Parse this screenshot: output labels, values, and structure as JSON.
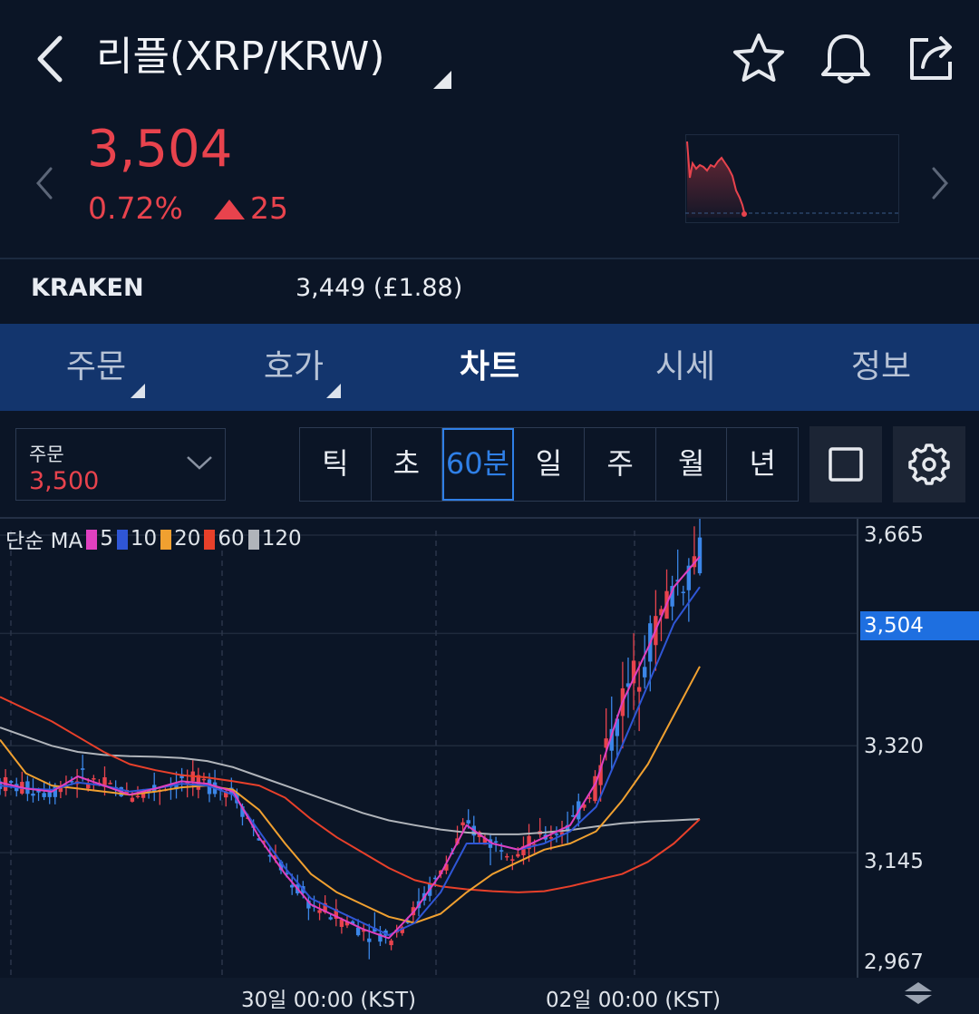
{
  "header": {
    "title": "리플(XRP/KRW)",
    "icons": [
      "back-arrow-icon",
      "star-icon",
      "bell-icon",
      "share-icon"
    ]
  },
  "price": {
    "current": "3,504",
    "change_pct": "0.72%",
    "change_abs": "25",
    "color_up": "#e8434d"
  },
  "exchange": {
    "name": "KRAKEN",
    "value": "3,449 (£1.88)"
  },
  "tabs": [
    {
      "label": "주문",
      "has_caret": true
    },
    {
      "label": "호가",
      "has_caret": true
    },
    {
      "label": "차트",
      "active": true
    },
    {
      "label": "시세"
    },
    {
      "label": "정보"
    }
  ],
  "order_select": {
    "label": "주문",
    "value": "3,500"
  },
  "periods": [
    "틱",
    "초",
    "60분",
    "일",
    "주",
    "월",
    "년"
  ],
  "selected_period": "60분",
  "chart": {
    "legend_prefix": "단순 MA",
    "ma_lines": [
      {
        "name": "5",
        "color": "#e040c0"
      },
      {
        "name": "10",
        "color": "#2f56d6"
      },
      {
        "name": "20",
        "color": "#f0a030"
      },
      {
        "name": "60",
        "color": "#e8402a"
      },
      {
        "name": "120",
        "color": "#b0b4ba"
      }
    ],
    "y_ticks": [
      "3,665",
      "3,320",
      "3,145",
      "2,967"
    ],
    "price_tag": "3,504",
    "x_ticks": [
      "30일 00:00 (KST)",
      "02일 00:00 (KST)"
    ]
  },
  "chart_data": {
    "type": "line",
    "title": "",
    "ylim": [
      2967,
      3665
    ],
    "current_price": 3504,
    "series": [
      {
        "name": "5",
        "values": [
          3260,
          3250,
          3245,
          3270,
          3255,
          3240,
          3250,
          3262,
          3258,
          3245,
          3170,
          3110,
          3060,
          3040,
          3020,
          3005,
          3050,
          3110,
          3190,
          3160,
          3150,
          3170,
          3190,
          3260,
          3390,
          3480,
          3580,
          3630
        ]
      },
      {
        "name": "10",
        "values": [
          3255,
          3250,
          3248,
          3260,
          3255,
          3245,
          3250,
          3258,
          3255,
          3240,
          3180,
          3120,
          3070,
          3050,
          3030,
          3010,
          3030,
          3080,
          3160,
          3160,
          3150,
          3160,
          3180,
          3220,
          3320,
          3420,
          3520,
          3580
        ]
      },
      {
        "name": "20",
        "values": [
          3330,
          3275,
          3255,
          3250,
          3245,
          3240,
          3245,
          3252,
          3255,
          3248,
          3215,
          3160,
          3110,
          3080,
          3060,
          3040,
          3030,
          3045,
          3080,
          3110,
          3130,
          3150,
          3160,
          3180,
          3230,
          3290,
          3370,
          3450
        ]
      },
      {
        "name": "60",
        "values": [
          3400,
          3380,
          3360,
          3335,
          3310,
          3290,
          3280,
          3272,
          3268,
          3262,
          3255,
          3235,
          3200,
          3170,
          3145,
          3120,
          3100,
          3090,
          3085,
          3082,
          3080,
          3082,
          3090,
          3100,
          3110,
          3130,
          3160,
          3200
        ]
      },
      {
        "name": "120",
        "values": [
          3350,
          3335,
          3320,
          3310,
          3305,
          3303,
          3302,
          3300,
          3295,
          3285,
          3270,
          3255,
          3240,
          3225,
          3210,
          3198,
          3190,
          3183,
          3178,
          3175,
          3175,
          3178,
          3182,
          3188,
          3193,
          3196,
          3198,
          3200
        ]
      }
    ]
  }
}
